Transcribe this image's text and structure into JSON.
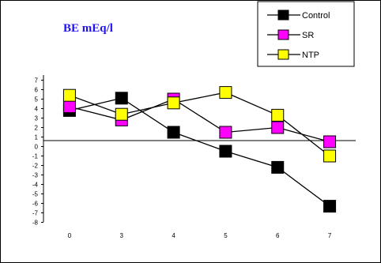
{
  "colors": {
    "Control": "#000000",
    "SR": "#ff00ff",
    "NTP": "#ffff00",
    "title": "#1f12ee",
    "line": "#000000"
  },
  "chart_data": {
    "type": "line",
    "title": "BE  mEq/l",
    "xlabel": "",
    "ylabel": "",
    "categories": [
      "0",
      "3",
      "4",
      "5",
      "6",
      "7"
    ],
    "ylim": [
      -8,
      7
    ],
    "yticks": [
      7,
      6,
      5,
      4,
      3,
      2,
      1,
      0,
      -1,
      -2,
      -3,
      -4,
      -5,
      -6,
      -7,
      -8
    ],
    "grid": false,
    "legend_position": "top-right",
    "series": [
      {
        "name": "Control",
        "values": [
          3.8,
          5.1,
          1.5,
          -0.5,
          -2.2,
          -6.3
        ]
      },
      {
        "name": "SR",
        "values": [
          4.2,
          2.8,
          5.0,
          1.5,
          2.0,
          0.5
        ]
      },
      {
        "name": "NTP",
        "values": [
          5.4,
          3.4,
          4.6,
          5.7,
          3.3,
          -1.0
        ]
      }
    ]
  }
}
